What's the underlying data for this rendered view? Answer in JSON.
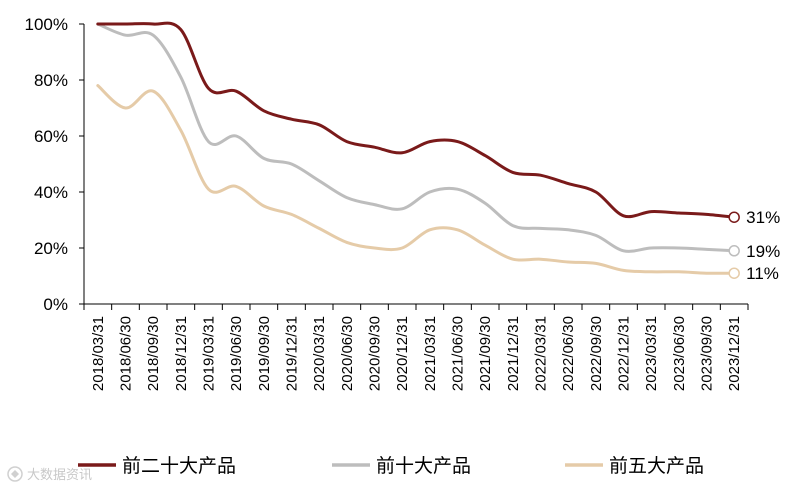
{
  "chart_data": {
    "type": "line",
    "categories": [
      "2018/03/31",
      "2018/06/30",
      "2018/09/30",
      "2018/12/31",
      "2019/03/31",
      "2019/06/30",
      "2019/09/30",
      "2019/12/31",
      "2020/03/31",
      "2020/06/30",
      "2020/09/30",
      "2020/12/31",
      "2021/03/31",
      "2021/06/30",
      "2021/09/30",
      "2021/12/31",
      "2022/03/31",
      "2022/06/30",
      "2022/09/30",
      "2022/12/31",
      "2023/03/31",
      "2023/06/30",
      "2023/09/30",
      "2023/12/31"
    ],
    "y_ticks": [
      "0%",
      "20%",
      "40%",
      "60%",
      "80%",
      "100%"
    ],
    "ylim": [
      0,
      100
    ],
    "series": [
      {
        "name": "前二十大产品",
        "color": "#7a1a1a",
        "end_label": "31%",
        "values": [
          100,
          100,
          100,
          98,
          77,
          76,
          69,
          66,
          64,
          58,
          56,
          54,
          58,
          58,
          53,
          47,
          46,
          43,
          40,
          31.5,
          33,
          32.5,
          32,
          31
        ]
      },
      {
        "name": "前十大产品",
        "color": "#bdbdbd",
        "end_label": "19%",
        "values": [
          100,
          96,
          96,
          81,
          58,
          60,
          52,
          50,
          44,
          38,
          35.5,
          34,
          40,
          41,
          36,
          28,
          27,
          26.5,
          24.5,
          19,
          20,
          20,
          19.5,
          19
        ]
      },
      {
        "name": "前五大产品",
        "color": "#e5cba8",
        "end_label": "11%",
        "values": [
          78,
          70,
          76,
          62,
          41,
          42,
          35,
          32,
          27,
          22,
          20,
          20,
          26.5,
          26.5,
          21,
          16,
          16,
          15,
          14.5,
          12,
          11.5,
          11.5,
          11,
          11
        ]
      }
    ],
    "legend_position": "bottom",
    "grid": false
  },
  "watermark": {
    "text": "大数据资讯",
    "icon": "watermark-logo-icon"
  }
}
